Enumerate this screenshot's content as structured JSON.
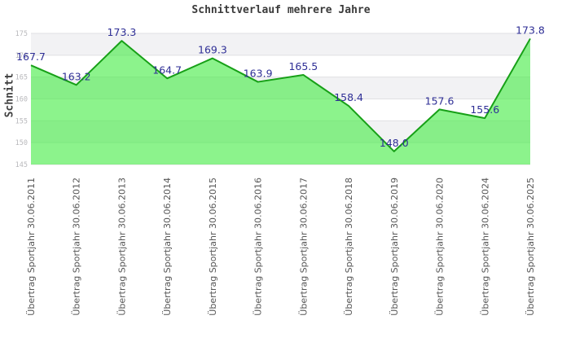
{
  "chart_data": {
    "type": "area",
    "title": "Schnittverlauf mehrere Jahre",
    "ylabel": "Schnitt",
    "xlabel": "",
    "categories": [
      "Übertrag Sportjahr 30.06.2011",
      "Übertrag Sportjahr 30.06.2012",
      "Übertrag Sportjahr 30.06.2013",
      "Übertrag Sportjahr 30.06.2014",
      "Übertrag Sportjahr 30.06.2015",
      "Übertrag Sportjahr 30.06.2016",
      "Übertrag Sportjahr 30.06.2017",
      "Übertrag Sportjahr 30.06.2018",
      "Übertrag Sportjahr 30.06.2019",
      "Übertrag Sportjahr 30.06.2020",
      "Übertrag Sportjahr 30.06.2024",
      "Übertrag Sportjahr 30.06.2025"
    ],
    "values": [
      167.7,
      163.2,
      173.3,
      164.7,
      169.3,
      163.9,
      165.5,
      158.4,
      148.0,
      157.6,
      155.6,
      173.8
    ],
    "value_decimals": 1,
    "ylim": [
      145,
      175
    ],
    "ytick_step": 5,
    "yticks": [
      145,
      150,
      155,
      160,
      165,
      170,
      175
    ],
    "grid": "horizontal-bands",
    "legend": "none",
    "colors": {
      "line": "#17a017",
      "area_fill": "rgba(70,235,70,0.62)",
      "value_label": "#2f2f96",
      "band_gray": "#f2f2f4",
      "band_white": "#ffffff",
      "gridline": "#e0e0e3",
      "y_tick": "#b9b9bc",
      "x_label": "#565656",
      "title": "#3a3a3a"
    }
  }
}
